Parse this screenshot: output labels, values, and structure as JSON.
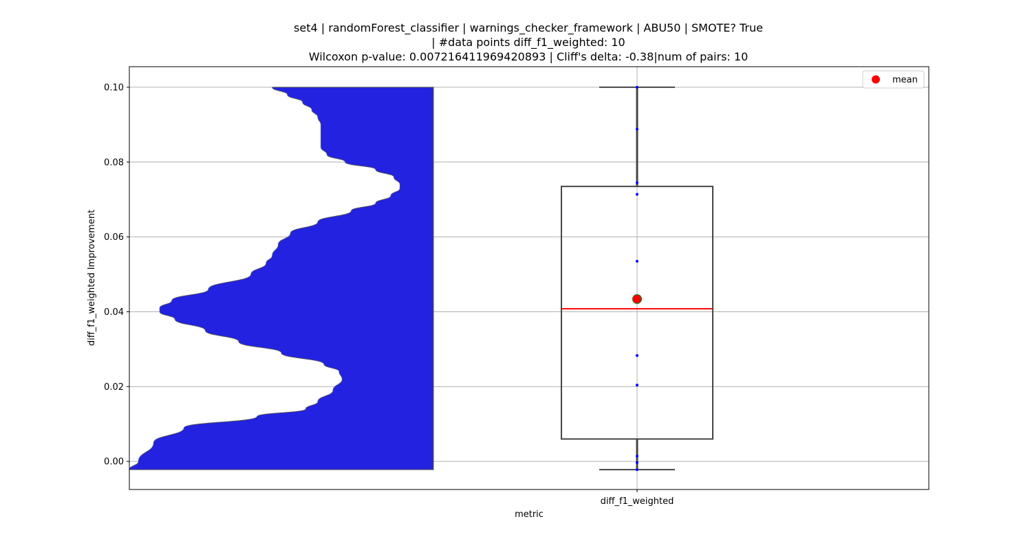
{
  "chart_data": {
    "type": "violin+box",
    "title_lines": [
      "set4 | randomForest_classifier | warnings_checker_framework | ABU50 | SMOTE? True",
      "| #data points diff_f1_weighted: 10",
      "Wilcoxon p-value: 0.007216411969420893 | Cliff's delta: -0.38|num of pairs: 10"
    ],
    "xlabel": "metric",
    "ylabel": "diff_f1_weighted Improvement",
    "categories": [
      "diff_f1_weighted"
    ],
    "ylim": [
      -0.0075,
      0.1055
    ],
    "yticks": [
      0.0,
      0.02,
      0.04,
      0.06,
      0.08,
      0.1
    ],
    "ytick_labels": [
      "0.00",
      "0.02",
      "0.04",
      "0.06",
      "0.08",
      "0.10"
    ],
    "grid": true,
    "legend": {
      "placement": "top-right",
      "entries": [
        {
          "label": "mean",
          "color": "#ff0000",
          "marker": "circle"
        }
      ]
    },
    "points": [
      0.1,
      0.0888,
      0.0745,
      0.0714,
      0.0535,
      0.0283,
      0.0204,
      0.0014,
      -0.0003,
      -0.0022
    ],
    "box": {
      "whisker_low": -0.0022,
      "q1": 0.006,
      "median": 0.0408,
      "q3": 0.0735,
      "whisker_high": 0.1
    },
    "mean": 0.0434,
    "violin_profile": {
      "y": [
        -0.0022,
        0.0,
        0.005,
        0.009,
        0.012,
        0.014,
        0.016,
        0.019,
        0.022,
        0.024,
        0.026,
        0.029,
        0.032,
        0.035,
        0.038,
        0.04,
        0.041,
        0.043,
        0.046,
        0.05,
        0.053,
        0.055,
        0.058,
        0.061,
        0.064,
        0.067,
        0.069,
        0.071,
        0.073,
        0.074,
        0.076,
        0.078,
        0.08,
        0.082,
        0.084,
        0.086,
        0.088,
        0.09,
        0.092,
        0.094,
        0.096,
        0.098,
        0.1
      ],
      "width": [
        1.0,
        0.97,
        0.92,
        0.82,
        0.58,
        0.42,
        0.38,
        0.33,
        0.3,
        0.31,
        0.36,
        0.5,
        0.64,
        0.75,
        0.85,
        0.9,
        0.9,
        0.86,
        0.74,
        0.6,
        0.55,
        0.53,
        0.51,
        0.47,
        0.38,
        0.27,
        0.19,
        0.14,
        0.11,
        0.11,
        0.13,
        0.19,
        0.29,
        0.35,
        0.37,
        0.37,
        0.37,
        0.37,
        0.38,
        0.4,
        0.43,
        0.48,
        0.53
      ]
    },
    "colors": {
      "violin_fill": "#2222e0",
      "violin_edge": "#555555",
      "box_edge": "#444444",
      "median": "#ff0000",
      "mean_marker": "#ff0000",
      "mean_marker_edge": "#2e7d32",
      "points": "#0000ff",
      "grid": "#b0b0b0"
    }
  }
}
